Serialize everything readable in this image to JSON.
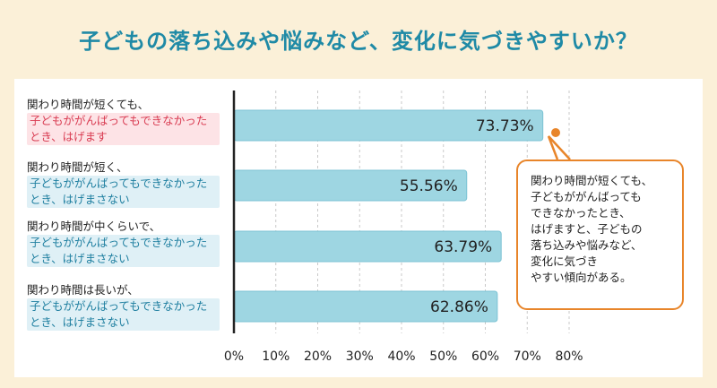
{
  "title": "子どもの落ち込みや悩みなど、変化に気づきやすいか？",
  "chart_data": {
    "type": "bar",
    "orientation": "horizontal",
    "categories": [
      {
        "line1": "関わり時間が短くても、",
        "line2": "子どもががんばってもできなかった\nとき、はげます",
        "highlight": "#fde3e6",
        "line2_color": "#d93c52"
      },
      {
        "line1": "関わり時間が短く、",
        "line2": "子どもががんばってもできなかった\nとき、はげまさない",
        "highlight": "#dff0f6",
        "line2_color": "#1f7fa0"
      },
      {
        "line1": "関わり時間が中くらいで、",
        "line2": "子どもががんばってもできなかった\nとき、はげまさない",
        "highlight": "#dff0f6",
        "line2_color": "#1f7fa0"
      },
      {
        "line1": "関わり時間は長いが、",
        "line2": "子どもががんばってもできなかった\nとき、はげまさない",
        "highlight": "#dff0f6",
        "line2_color": "#1f7fa0"
      }
    ],
    "values": [
      73.73,
      55.56,
      63.79,
      62.86
    ],
    "value_labels": [
      "73.73%",
      "55.56%",
      "63.79%",
      "62.86%"
    ],
    "xlim": [
      0,
      80
    ],
    "ticks": [
      "0%",
      "10%",
      "20%",
      "30%",
      "40%",
      "50%",
      "60%",
      "70%",
      "80%"
    ],
    "grid": true,
    "bar_color": "#9ed6e2",
    "bar_border": "#7cc3d4"
  },
  "callout": {
    "text": "関わり時間が短くても、\n子どもががんばっても\nできなかったとき、\nはげますと、子どもの\n落ち込みや悩みなど、\n変化に気づき\nやすい傾向がある。",
    "border_color": "#e8852a"
  },
  "colors": {
    "title": "#1f8aa6",
    "frame": "#fbf0d8"
  }
}
